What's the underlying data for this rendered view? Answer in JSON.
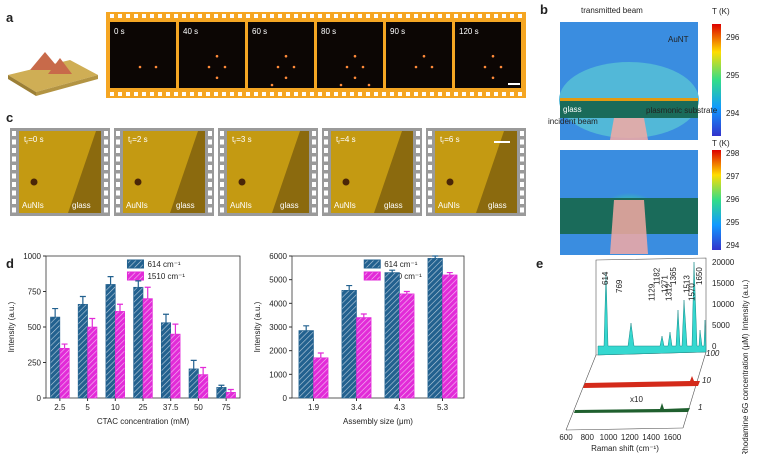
{
  "panels": {
    "a": {
      "label": "a",
      "times": [
        "0 s",
        "40 s",
        "60 s",
        "80 s",
        "90 s",
        "120 s"
      ]
    },
    "b": {
      "label": "b",
      "top": {
        "transmitted": "transmitted beam",
        "particle": "AuNT",
        "glass": "glass",
        "substrate": "plasmonic substrate",
        "incident": "incident beam",
        "unit": "T (K)",
        "ticks": [
          "296",
          "295",
          "294"
        ]
      },
      "bottom": {
        "unit": "T (K)",
        "ticks": [
          "298",
          "297",
          "296",
          "295",
          "294"
        ]
      }
    },
    "c": {
      "label": "c",
      "symbol": "t",
      "subscript": "r",
      "times": [
        "=0 s",
        "=2 s",
        "=3 s",
        "=4 s",
        "=6 s"
      ],
      "left": "AuNIs",
      "right": "glass"
    },
    "d": {
      "label": "d"
    },
    "e": {
      "label": "e",
      "peaks": [
        "614",
        "769",
        "1129",
        "1182",
        "1271",
        "1312",
        "1365",
        "1513",
        "1570",
        "1650"
      ],
      "xticks": [
        "600",
        "800",
        "1000",
        "1200",
        "1400",
        "1600"
      ],
      "xlabel": "Raman shift (cm⁻¹)",
      "yticks": [
        "0",
        "5000",
        "10000",
        "15000",
        "20000"
      ],
      "ylabel": "Intensity (a.u.)",
      "concentrations": [
        "100",
        "10",
        "1"
      ],
      "zlabel": "Rhodamine 6G concentration (μM)",
      "factor": "x10"
    }
  },
  "chart_data": [
    {
      "type": "bar",
      "categories": [
        "2.5",
        "5",
        "10",
        "25",
        "37.5",
        "50",
        "75"
      ],
      "series": [
        {
          "name": "614 cm⁻¹",
          "color": "#22618f",
          "values": [
            570,
            660,
            800,
            780,
            530,
            205,
            75
          ],
          "errors": [
            60,
            55,
            55,
            45,
            60,
            60,
            15
          ]
        },
        {
          "name": "1510 cm⁻¹",
          "color": "#e22bd8",
          "values": [
            350,
            500,
            610,
            700,
            450,
            165,
            40
          ],
          "errors": [
            30,
            60,
            50,
            80,
            70,
            50,
            20
          ]
        }
      ],
      "ylim": [
        0,
        1000
      ],
      "yticks": [
        0,
        250,
        500,
        750,
        1000
      ],
      "xlabel": "CTAC concentration (mM)",
      "ylabel": "Intensity (a.u.)"
    },
    {
      "type": "bar",
      "categories": [
        "1.9",
        "3.4",
        "4.3",
        "5.3"
      ],
      "series": [
        {
          "name": "614 cm⁻¹",
          "color": "#22618f",
          "values": [
            2850,
            4550,
            5300,
            5900
          ],
          "errors": [
            200,
            200,
            100,
            100
          ]
        },
        {
          "name": "1510 cm⁻¹",
          "color": "#e22bd8",
          "values": [
            1700,
            3400,
            4400,
            5200
          ],
          "errors": [
            200,
            150,
            100,
            100
          ]
        }
      ],
      "ylim": [
        0,
        6000
      ],
      "yticks": [
        0,
        1000,
        2000,
        3000,
        4000,
        5000,
        6000
      ],
      "xlabel": "Assembly size (μm)",
      "ylabel": "Intensity (a.u.)"
    }
  ]
}
